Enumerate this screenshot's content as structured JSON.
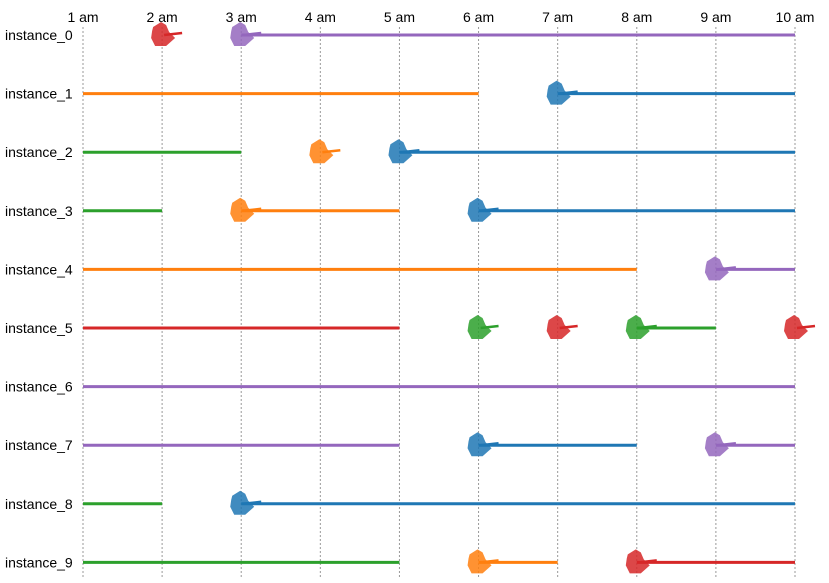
{
  "colors": {
    "blue": "#1f77b4",
    "orange": "#ff7f0e",
    "green": "#2ca02c",
    "red": "#d62728",
    "purple": "#9467bd"
  },
  "chart_data": {
    "type": "timeline",
    "x_ticks": [
      "1 am",
      "2 am",
      "3 am",
      "4 am",
      "5 am",
      "6 am",
      "7 am",
      "8 am",
      "9 am",
      "10 am"
    ],
    "x_range": [
      1,
      10
    ],
    "grid": true,
    "rows": [
      {
        "label": "instance_0",
        "segments": [
          {
            "color": "purple",
            "start": 3,
            "end": 10
          }
        ],
        "events": [
          {
            "color": "red",
            "time": 2
          },
          {
            "color": "purple",
            "time": 3
          }
        ]
      },
      {
        "label": "instance_1",
        "segments": [
          {
            "color": "orange",
            "start": 1,
            "end": 6
          },
          {
            "color": "blue",
            "start": 7,
            "end": 10
          }
        ],
        "events": [
          {
            "color": "blue",
            "time": 7
          }
        ]
      },
      {
        "label": "instance_2",
        "segments": [
          {
            "color": "green",
            "start": 1,
            "end": 3
          },
          {
            "color": "blue",
            "start": 5,
            "end": 10
          }
        ],
        "events": [
          {
            "color": "orange",
            "time": 4
          },
          {
            "color": "blue",
            "time": 5
          }
        ]
      },
      {
        "label": "instance_3",
        "segments": [
          {
            "color": "green",
            "start": 1,
            "end": 2
          },
          {
            "color": "orange",
            "start": 3,
            "end": 5
          },
          {
            "color": "blue",
            "start": 6,
            "end": 10
          }
        ],
        "events": [
          {
            "color": "orange",
            "time": 3
          },
          {
            "color": "blue",
            "time": 6
          }
        ]
      },
      {
        "label": "instance_4",
        "segments": [
          {
            "color": "orange",
            "start": 1,
            "end": 8
          },
          {
            "color": "purple",
            "start": 9,
            "end": 10
          }
        ],
        "events": [
          {
            "color": "purple",
            "time": 9
          }
        ]
      },
      {
        "label": "instance_5",
        "segments": [
          {
            "color": "red",
            "start": 1,
            "end": 5
          },
          {
            "color": "green",
            "start": 8,
            "end": 9
          }
        ],
        "events": [
          {
            "color": "green",
            "time": 6
          },
          {
            "color": "red",
            "time": 7
          },
          {
            "color": "green",
            "time": 8
          },
          {
            "color": "red",
            "time": 10
          }
        ]
      },
      {
        "label": "instance_6",
        "segments": [
          {
            "color": "purple",
            "start": 1,
            "end": 10
          }
        ],
        "events": []
      },
      {
        "label": "instance_7",
        "segments": [
          {
            "color": "purple",
            "start": 1,
            "end": 5
          },
          {
            "color": "blue",
            "start": 6,
            "end": 8
          },
          {
            "color": "purple",
            "start": 9,
            "end": 10
          }
        ],
        "events": [
          {
            "color": "blue",
            "time": 6
          },
          {
            "color": "purple",
            "time": 9
          }
        ]
      },
      {
        "label": "instance_8",
        "segments": [
          {
            "color": "green",
            "start": 1,
            "end": 2
          },
          {
            "color": "blue",
            "start": 3,
            "end": 10
          }
        ],
        "events": [
          {
            "color": "blue",
            "time": 3
          }
        ]
      },
      {
        "label": "instance_9",
        "segments": [
          {
            "color": "green",
            "start": 1,
            "end": 5
          },
          {
            "color": "orange",
            "start": 6,
            "end": 7
          },
          {
            "color": "red",
            "start": 8,
            "end": 10
          }
        ],
        "events": [
          {
            "color": "orange",
            "time": 6
          },
          {
            "color": "red",
            "time": 8
          }
        ]
      }
    ]
  }
}
